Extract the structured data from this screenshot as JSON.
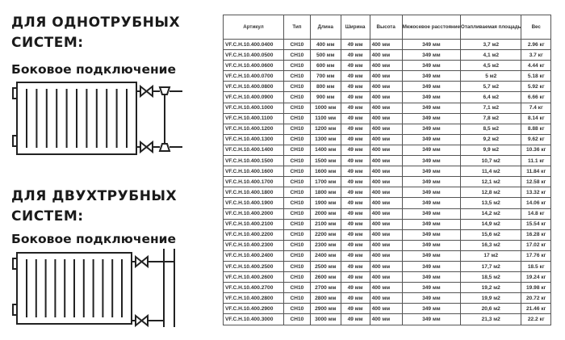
{
  "left": {
    "one_pipe_title_1": "ДЛЯ ОДНОТРУБНЫХ",
    "one_pipe_title_2": "СИСТЕМ:",
    "one_pipe_sub": "Боковое подключение",
    "two_pipe_title_1": "ДЛЯ ДВУХТРУБНЫХ",
    "two_pipe_title_2": "СИСТЕМ:",
    "two_pipe_sub": "Боковое подключение"
  },
  "table": {
    "headers": [
      "Артикул",
      "Тип",
      "Длина",
      "Ширина",
      "Высота",
      "Межосевое расстояние",
      "Отапливаемая площадь",
      "Вес"
    ],
    "rows": [
      [
        "VF.C.H.10.400.0400",
        "CH10",
        "400 мм",
        "49 мм",
        "400 мм",
        "349 мм",
        "3,7 м2",
        "2.96 кг"
      ],
      [
        "VF.C.H.10.400.0500",
        "CH10",
        "500 мм",
        "49 мм",
        "400 мм",
        "349 мм",
        "4,1 м2",
        "3.7 кг"
      ],
      [
        "VF.C.H.10.400.0600",
        "CH10",
        "600 мм",
        "49 мм",
        "400 мм",
        "349 мм",
        "4,5 м2",
        "4.44 кг"
      ],
      [
        "VF.C.H.10.400.0700",
        "CH10",
        "700 мм",
        "49 мм",
        "400 мм",
        "349 мм",
        "5 м2",
        "5.18 кг"
      ],
      [
        "VF.C.H.10.400.0800",
        "CH10",
        "800 мм",
        "49 мм",
        "400 мм",
        "349 мм",
        "5,7 м2",
        "5.92 кг"
      ],
      [
        "VF.C.H.10.400.0900",
        "CH10",
        "900 мм",
        "49 мм",
        "400 мм",
        "349 мм",
        "6,4 м2",
        "6.66 кг"
      ],
      [
        "VF.C.H.10.400.1000",
        "CH10",
        "1000 мм",
        "49 мм",
        "400 мм",
        "349 мм",
        "7,1 м2",
        "7.4 кг"
      ],
      [
        "VF.C.H.10.400.1100",
        "CH10",
        "1100 мм",
        "49 мм",
        "400 мм",
        "349 мм",
        "7,8 м2",
        "8.14 кг"
      ],
      [
        "VF.C.H.10.400.1200",
        "CH10",
        "1200 мм",
        "49 мм",
        "400 мм",
        "349 мм",
        "8,5 м2",
        "8.88 кг"
      ],
      [
        "VF.C.H.10.400.1300",
        "CH10",
        "1300 мм",
        "49 мм",
        "400 мм",
        "349 мм",
        "9,2 м2",
        "9.62 кг"
      ],
      [
        "VF.C.H.10.400.1400",
        "CH10",
        "1400 мм",
        "49 мм",
        "400 мм",
        "349 мм",
        "9,9 м2",
        "10.36 кг"
      ],
      [
        "VF.C.H.10.400.1500",
        "CH10",
        "1500 мм",
        "49 мм",
        "400 мм",
        "349 мм",
        "10,7 м2",
        "11.1 кг"
      ],
      [
        "VF.C.H.10.400.1600",
        "CH10",
        "1600 мм",
        "49 мм",
        "400 мм",
        "349 мм",
        "11,4 м2",
        "11.84 кг"
      ],
      [
        "VF.C.H.10.400.1700",
        "CH10",
        "1700 мм",
        "49 мм",
        "400 мм",
        "349 мм",
        "12,1 м2",
        "12.58 кг"
      ],
      [
        "VF.C.H.10.400.1800",
        "CH10",
        "1800 мм",
        "49 мм",
        "400 мм",
        "349 мм",
        "12,8 м2",
        "13.32 кг"
      ],
      [
        "VF.C.H.10.400.1900",
        "CH10",
        "1900 мм",
        "49 мм",
        "400 мм",
        "349 мм",
        "13,5 м2",
        "14.06 кг"
      ],
      [
        "VF.C.H.10.400.2000",
        "CH10",
        "2000 мм",
        "49 мм",
        "400 мм",
        "349 мм",
        "14,2 м2",
        "14.8 кг"
      ],
      [
        "VF.C.H.10.400.2100",
        "CH10",
        "2100 мм",
        "49 мм",
        "400 мм",
        "349 мм",
        "14,9 м2",
        "15.54 кг"
      ],
      [
        "VF.C.H.10.400.2200",
        "CH10",
        "2200 мм",
        "49 мм",
        "400 мм",
        "349 мм",
        "15,6 м2",
        "16.28 кг"
      ],
      [
        "VF.C.H.10.400.2300",
        "CH10",
        "2300 мм",
        "49 мм",
        "400 мм",
        "349 мм",
        "16,3 м2",
        "17.02 кг"
      ],
      [
        "VF.C.H.10.400.2400",
        "CH10",
        "2400 мм",
        "49 мм",
        "400 мм",
        "349 мм",
        "17 м2",
        "17.76 кг"
      ],
      [
        "VF.C.H.10.400.2500",
        "CH10",
        "2500 мм",
        "49 мм",
        "400 мм",
        "349 мм",
        "17,7 м2",
        "18.5 кг"
      ],
      [
        "VF.C.H.10.400.2600",
        "CH10",
        "2600 мм",
        "49 мм",
        "400 мм",
        "349 мм",
        "18,5 м2",
        "19.24 кг"
      ],
      [
        "VF.C.H.10.400.2700",
        "CH10",
        "2700 мм",
        "49 мм",
        "400 мм",
        "349 мм",
        "19,2 м2",
        "19.98 кг"
      ],
      [
        "VF.C.H.10.400.2800",
        "CH10",
        "2800 мм",
        "49 мм",
        "400 мм",
        "349 мм",
        "19,9 м2",
        "20.72 кг"
      ],
      [
        "VF.C.H.10.400.2900",
        "CH10",
        "2900 мм",
        "49 мм",
        "400 мм",
        "349 мм",
        "20,6 м2",
        "21.46 кг"
      ],
      [
        "VF.C.H.10.400.3000",
        "CH10",
        "3000 мм",
        "49 мм",
        "400 мм",
        "349 мм",
        "21,3 м2",
        "22.2 кг"
      ]
    ]
  }
}
